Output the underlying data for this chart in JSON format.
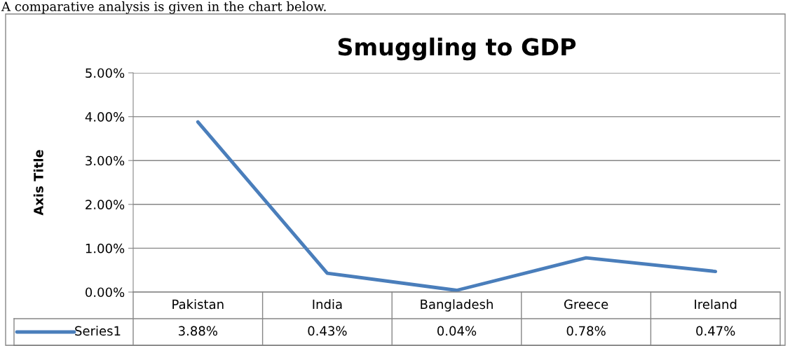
{
  "chart_data": {
    "type": "line",
    "title": "Smuggling to GDP",
    "ylabel": "Axis Title",
    "annotations": [
      "A comparative analysis is given in the chart below."
    ],
    "categories": [
      "Pakistan",
      "India",
      "Bangladesh",
      "Greece",
      "Ireland"
    ],
    "series": [
      {
        "name": "Series1",
        "color": "#4a7ebb",
        "values": [
          3.88,
          0.43,
          0.04,
          0.78,
          0.47
        ],
        "value_labels": [
          "3.88%",
          "0.43%",
          "0.04%",
          "0.78%",
          "0.47%"
        ]
      }
    ],
    "ylim": [
      0,
      5
    ],
    "yticks": [
      {
        "value": 0,
        "label": "0.00%"
      },
      {
        "value": 1,
        "label": "1.00%"
      },
      {
        "value": 2,
        "label": "2.00%"
      },
      {
        "value": 3,
        "label": "3.00%"
      },
      {
        "value": 4,
        "label": "4.00%"
      },
      {
        "value": 5,
        "label": "5.00%"
      }
    ],
    "grid": "y",
    "legend": "bottom",
    "marker": "none",
    "line_style": "solid"
  }
}
